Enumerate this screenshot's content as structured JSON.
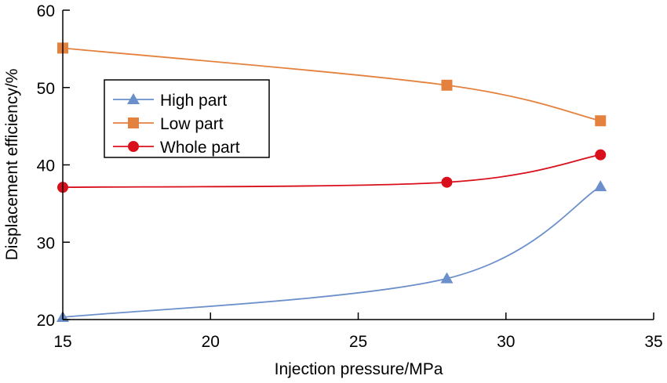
{
  "chart_data": {
    "type": "line",
    "title": "",
    "xlabel": "Injection pressure/MPa",
    "ylabel": "Displacement efficiency/%",
    "xlim": [
      15,
      35
    ],
    "ylim": [
      20,
      60
    ],
    "xticks": [
      15,
      20,
      25,
      30,
      35
    ],
    "yticks": [
      20,
      30,
      40,
      50,
      60
    ],
    "x_tick_labels": [
      "15",
      "20",
      "25",
      "30",
      "35"
    ],
    "y_tick_labels": [
      "20",
      "30",
      "40",
      "50",
      "60"
    ],
    "grid": false,
    "smooth": true,
    "legend_position": "upper-left",
    "x": [
      15,
      28,
      33.2
    ],
    "series": [
      {
        "name": "High part",
        "marker": "triangle",
        "color": "#6a8fcb",
        "values": [
          20.3,
          25.3,
          37.2
        ]
      },
      {
        "name": "Low part",
        "marker": "square",
        "color": "#e5813e",
        "values": [
          55.1,
          50.3,
          45.7
        ]
      },
      {
        "name": "Whole part",
        "marker": "circle",
        "color": "#d9101c",
        "values": [
          37.1,
          37.75,
          41.3
        ]
      }
    ]
  }
}
